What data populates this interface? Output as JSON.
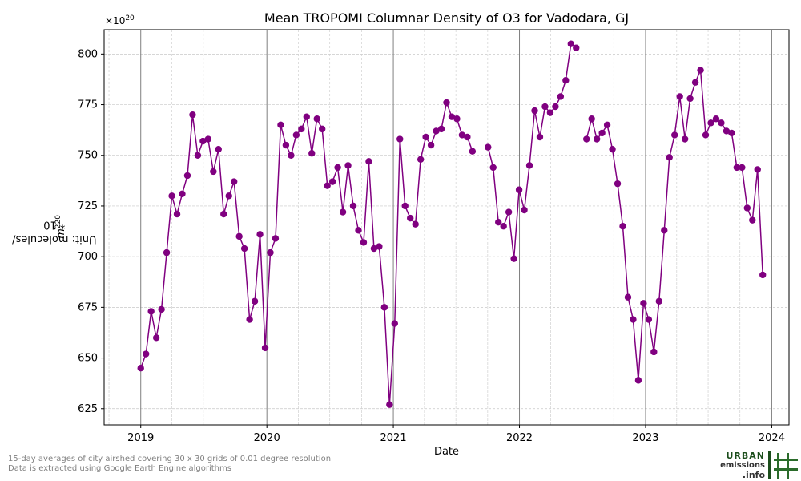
{
  "chart_data": {
    "type": "line",
    "title": "Mean TROPOMI Columnar Density of O3 for Vadodara, GJ",
    "xlabel": "Date",
    "ylabel_text": "Unit: molecules/",
    "ylabel_unit": "m",
    "ylabel_mid": " * 10",
    "ylabel_exp": "20",
    "multiplier_base": "×10",
    "multiplier_exp": "20",
    "xlim": [
      "2018-09-17",
      "2024-02-20"
    ],
    "ylim": [
      617,
      812
    ],
    "x_ticks": [
      "2019",
      "2020",
      "2021",
      "2022",
      "2023",
      "2024"
    ],
    "y_ticks": [
      625,
      650,
      675,
      700,
      725,
      750,
      775,
      800
    ],
    "grid": true,
    "marker_color": "#800080",
    "series": [
      {
        "name": "",
        "points": [
          [
            "2019-01-01",
            645
          ],
          [
            "2019-01-16",
            652
          ],
          [
            "2019-01-31",
            673
          ],
          [
            "2019-02-15",
            660
          ],
          [
            "2019-03-02",
            674
          ],
          [
            "2019-03-17",
            702
          ],
          [
            "2019-04-01",
            730
          ],
          [
            "2019-04-16",
            721
          ],
          [
            "2019-05-01",
            731
          ],
          [
            "2019-05-16",
            740
          ],
          [
            "2019-05-31",
            770
          ],
          [
            "2019-06-15",
            750
          ],
          [
            "2019-06-30",
            757
          ],
          [
            "2019-07-15",
            758
          ],
          [
            "2019-07-30",
            742
          ],
          [
            "2019-08-14",
            753
          ],
          [
            "2019-08-29",
            721
          ],
          [
            "2019-09-13",
            730
          ],
          [
            "2019-09-28",
            737
          ],
          [
            "2019-10-13",
            710
          ],
          [
            "2019-10-28",
            704
          ],
          [
            "2019-11-12",
            669
          ],
          [
            "2019-11-27",
            678
          ],
          [
            "2019-12-12",
            711
          ],
          [
            "2019-12-27",
            655
          ],
          [
            "2020-01-11",
            702
          ],
          [
            "2020-01-26",
            709
          ],
          [
            "2020-02-10",
            765
          ],
          [
            "2020-02-25",
            755
          ],
          [
            "2020-03-11",
            750
          ],
          [
            "2020-03-26",
            760
          ],
          [
            "2020-04-10",
            763
          ],
          [
            "2020-04-25",
            769
          ],
          [
            "2020-05-10",
            751
          ],
          [
            "2020-05-25",
            768
          ],
          [
            "2020-06-09",
            763
          ],
          [
            "2020-06-24",
            735
          ],
          [
            "2020-07-09",
            737
          ],
          [
            "2020-07-24",
            744
          ],
          [
            "2020-08-08",
            722
          ],
          [
            "2020-08-23",
            745
          ],
          [
            "2020-09-07",
            725
          ],
          [
            "2020-09-22",
            713
          ],
          [
            "2020-10-07",
            707
          ],
          [
            "2020-10-22",
            747
          ],
          [
            "2020-11-06",
            704
          ],
          [
            "2020-11-21",
            705
          ],
          [
            "2020-12-06",
            675
          ],
          [
            "2020-12-21",
            627
          ],
          [
            "2021-01-05",
            667
          ],
          [
            "2021-01-20",
            758
          ],
          [
            "2021-02-04",
            725
          ],
          [
            "2021-02-19",
            719
          ],
          [
            "2021-03-06",
            716
          ],
          [
            "2021-03-21",
            748
          ],
          [
            "2021-04-05",
            759
          ],
          [
            "2021-04-20",
            755
          ],
          [
            "2021-05-05",
            762
          ],
          [
            "2021-05-20",
            763
          ],
          [
            "2021-06-04",
            776
          ],
          [
            "2021-06-19",
            769
          ],
          [
            "2021-07-04",
            768
          ],
          [
            "2021-07-19",
            760
          ],
          [
            "2021-08-03",
            759
          ],
          [
            "2021-08-18",
            752
          ],
          [
            "2021-09-02",
            null
          ],
          [
            "2021-09-17",
            null
          ],
          [
            "2021-10-02",
            754
          ],
          [
            "2021-10-17",
            744
          ],
          [
            "2021-11-01",
            717
          ],
          [
            "2021-11-16",
            715
          ],
          [
            "2021-12-01",
            722
          ],
          [
            "2021-12-16",
            699
          ],
          [
            "2021-12-31",
            733
          ],
          [
            "2022-01-15",
            723
          ],
          [
            "2022-01-30",
            745
          ],
          [
            "2022-02-14",
            772
          ],
          [
            "2022-03-01",
            759
          ],
          [
            "2022-03-16",
            774
          ],
          [
            "2022-03-31",
            771
          ],
          [
            "2022-04-15",
            774
          ],
          [
            "2022-04-30",
            779
          ],
          [
            "2022-05-15",
            787
          ],
          [
            "2022-05-30",
            805
          ],
          [
            "2022-06-14",
            803
          ],
          [
            "2022-06-29",
            null
          ],
          [
            "2022-07-14",
            758
          ],
          [
            "2022-07-29",
            768
          ],
          [
            "2022-08-13",
            758
          ],
          [
            "2022-08-28",
            761
          ],
          [
            "2022-09-12",
            765
          ],
          [
            "2022-09-27",
            753
          ],
          [
            "2022-10-12",
            736
          ],
          [
            "2022-10-27",
            715
          ],
          [
            "2022-11-11",
            680
          ],
          [
            "2022-11-26",
            669
          ],
          [
            "2022-12-11",
            639
          ],
          [
            "2022-12-26",
            677
          ],
          [
            "2023-01-10",
            669
          ],
          [
            "2023-01-25",
            653
          ],
          [
            "2023-02-09",
            678
          ],
          [
            "2023-02-24",
            713
          ],
          [
            "2023-03-11",
            749
          ],
          [
            "2023-03-26",
            760
          ],
          [
            "2023-04-10",
            779
          ],
          [
            "2023-04-25",
            758
          ],
          [
            "2023-05-10",
            778
          ],
          [
            "2023-05-25",
            786
          ],
          [
            "2023-06-09",
            792
          ],
          [
            "2023-06-24",
            760
          ],
          [
            "2023-07-09",
            766
          ],
          [
            "2023-07-24",
            768
          ],
          [
            "2023-08-08",
            766
          ],
          [
            "2023-08-23",
            762
          ],
          [
            "2023-09-07",
            761
          ],
          [
            "2023-09-22",
            744
          ],
          [
            "2023-10-07",
            744
          ],
          [
            "2023-10-22",
            724
          ],
          [
            "2023-11-06",
            718
          ],
          [
            "2023-11-21",
            743
          ],
          [
            "2023-12-06",
            691
          ]
        ]
      }
    ]
  },
  "footnote": {
    "line1": "15-day averages of city airshed covering 30 x 30 grids of 0.01 degree resolution",
    "line2": "Data is extracted using Google Earth Engine algorithms"
  },
  "logo": {
    "line1": "URBAN",
    "line2": "emissions",
    "line3": ".info",
    "icon": "hash-grid-icon"
  }
}
